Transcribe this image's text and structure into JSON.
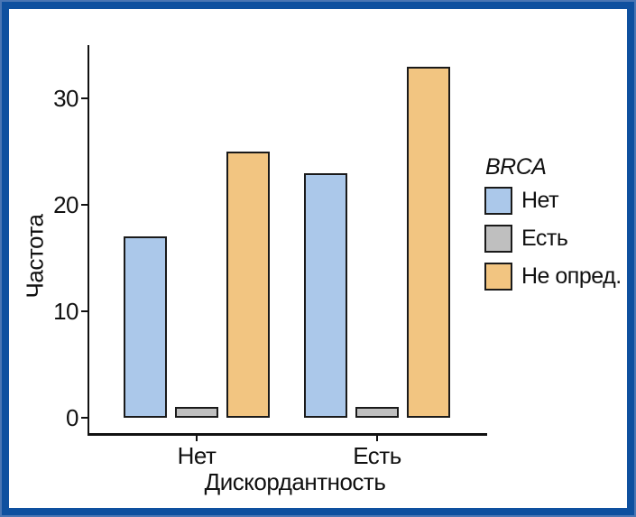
{
  "chart_data": {
    "type": "bar",
    "title": "",
    "categories": [
      "Нет",
      "Есть"
    ],
    "series": [
      {
        "name": "Нет",
        "color": "#abc8ea",
        "values": [
          17,
          23
        ]
      },
      {
        "name": "Есть",
        "color": "#bfbfbf",
        "values": [
          1,
          1
        ]
      },
      {
        "name": "Не опред.",
        "color": "#f2c581",
        "values": [
          25,
          33
        ]
      }
    ],
    "xlabel": "Дискордантность",
    "ylabel": "Частота",
    "ylim": [
      0,
      35
    ],
    "yticks": [
      0,
      10,
      20,
      30
    ],
    "legend": {
      "title": "BRCA",
      "position": "right",
      "entries": [
        "Нет",
        "Есть",
        "Не опред."
      ]
    },
    "grid": false
  },
  "colors": {
    "frame_outer": "#4a76b4",
    "frame_dark": "#0e509f",
    "background": "#ffffff",
    "axis": "#111111",
    "bar_border": "#1a1a1a",
    "text": "#111111"
  }
}
